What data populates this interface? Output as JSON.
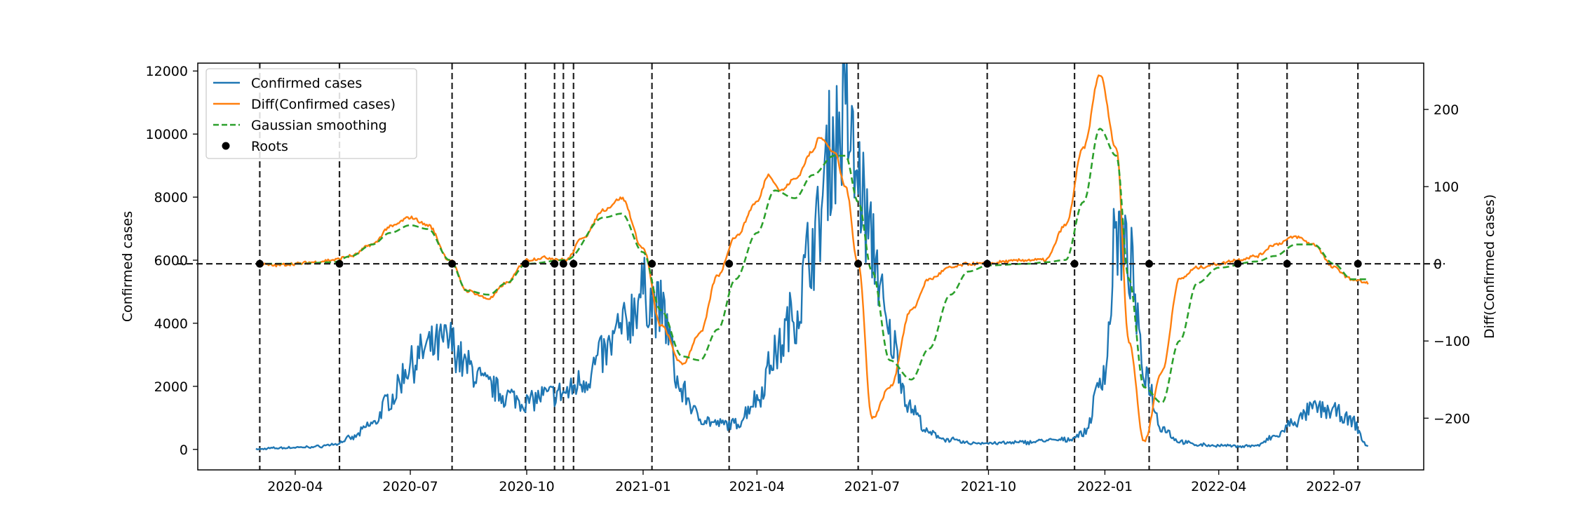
{
  "chart_data": {
    "type": "line",
    "title": "",
    "xlabel": "",
    "ylabel": "Confirmed cases",
    "y2label": "Diff(Confirmed cases)",
    "xlim": [
      "2020-01-15",
      "2022-09-10"
    ],
    "ylim": [
      -650,
      12250
    ],
    "y2lim": [
      -267,
      260
    ],
    "x_ticks": [
      "2020-04-01",
      "2020-07-01",
      "2020-10-01",
      "2021-01-01",
      "2021-04-01",
      "2021-07-01",
      "2021-10-01",
      "2022-01-01",
      "2022-04-01",
      "2022-07-01"
    ],
    "x_tick_labels": [
      "2020-04",
      "2020-07",
      "2020-10",
      "2021-01",
      "2021-04",
      "2021-07",
      "2021-10",
      "2022-01",
      "2022-04",
      "2022-07"
    ],
    "y_ticks": [
      0,
      2000,
      4000,
      6000,
      8000,
      10000,
      12000
    ],
    "y_tick_labels": [
      "0",
      "2000",
      "4000",
      "6000",
      "8000",
      "10000",
      "12000"
    ],
    "y2_ticks": [
      -200,
      -100,
      0,
      100,
      200
    ],
    "y2_tick_labels": [
      "−200",
      "−100",
      "0",
      "100",
      "200"
    ],
    "grid": false,
    "legend_position": "upper-left",
    "colors": {
      "confirmed": "#1f77b4",
      "diff": "#ff7f0e",
      "smooth": "#2ca02c",
      "roots": "#000000",
      "reference": "#222222"
    },
    "series": [
      {
        "name": "Confirmed cases",
        "axis": "left",
        "style": "solid",
        "x": [
          "2020-03-01",
          "2020-03-15",
          "2020-04-01",
          "2020-04-15",
          "2020-05-01",
          "2020-05-15",
          "2020-06-01",
          "2020-06-15",
          "2020-07-01",
          "2020-07-15",
          "2020-08-01",
          "2020-08-15",
          "2020-09-01",
          "2020-09-15",
          "2020-10-01",
          "2020-10-15",
          "2020-11-01",
          "2020-11-15",
          "2020-12-01",
          "2020-12-15",
          "2021-01-01",
          "2021-01-15",
          "2021-02-01",
          "2021-02-15",
          "2021-03-01",
          "2021-03-15",
          "2021-04-01",
          "2021-04-15",
          "2021-05-01",
          "2021-05-15",
          "2021-06-01",
          "2021-06-10",
          "2021-06-20",
          "2021-07-01",
          "2021-07-15",
          "2021-08-01",
          "2021-08-15",
          "2021-09-01",
          "2021-09-15",
          "2021-10-01",
          "2021-10-15",
          "2021-11-01",
          "2021-11-15",
          "2021-12-01",
          "2021-12-15",
          "2022-01-01",
          "2022-01-10",
          "2022-01-20",
          "2022-02-01",
          "2022-02-15",
          "2022-03-01",
          "2022-03-15",
          "2022-04-01",
          "2022-04-15",
          "2022-05-01",
          "2022-05-15",
          "2022-06-01",
          "2022-06-15",
          "2022-07-01",
          "2022-07-15",
          "2022-07-28"
        ],
        "values": [
          0,
          40,
          60,
          80,
          150,
          350,
          800,
          1600,
          2700,
          3200,
          3400,
          2600,
          2000,
          1700,
          1500,
          1700,
          1800,
          2200,
          3000,
          3800,
          5000,
          4400,
          1800,
          1000,
          800,
          800,
          1600,
          3000,
          4300,
          6500,
          9800,
          10500,
          8500,
          6500,
          3500,
          1300,
          500,
          300,
          200,
          200,
          200,
          230,
          280,
          300,
          500,
          2500,
          6800,
          6000,
          2500,
          700,
          250,
          150,
          120,
          100,
          120,
          400,
          900,
          1300,
          1200,
          900,
          100
        ]
      },
      {
        "name": "Diff(Confirmed cases)",
        "axis": "right",
        "style": "solid",
        "x": [
          "2020-03-01",
          "2020-03-15",
          "2020-04-01",
          "2020-04-15",
          "2020-05-01",
          "2020-05-15",
          "2020-06-01",
          "2020-06-15",
          "2020-07-01",
          "2020-07-15",
          "2020-08-01",
          "2020-08-15",
          "2020-09-01",
          "2020-09-15",
          "2020-10-01",
          "2020-10-15",
          "2020-11-01",
          "2020-11-15",
          "2020-12-01",
          "2020-12-15",
          "2021-01-01",
          "2021-01-15",
          "2021-02-01",
          "2021-02-15",
          "2021-03-01",
          "2021-03-15",
          "2021-04-01",
          "2021-04-10",
          "2021-04-20",
          "2021-05-01",
          "2021-05-15",
          "2021-05-20",
          "2021-06-01",
          "2021-06-10",
          "2021-06-20",
          "2021-07-01",
          "2021-07-15",
          "2021-08-01",
          "2021-08-15",
          "2021-09-01",
          "2021-09-15",
          "2021-10-01",
          "2021-10-15",
          "2021-11-01",
          "2021-11-15",
          "2021-12-01",
          "2021-12-15",
          "2021-12-28",
          "2022-01-10",
          "2022-01-20",
          "2022-02-01",
          "2022-02-15",
          "2022-03-01",
          "2022-03-15",
          "2022-04-01",
          "2022-04-15",
          "2022-05-01",
          "2022-05-15",
          "2022-06-01",
          "2022-06-15",
          "2022-07-01",
          "2022-07-15",
          "2022-07-28"
        ],
        "values": [
          0,
          -2,
          0,
          2,
          5,
          10,
          25,
          48,
          60,
          50,
          5,
          -35,
          -45,
          -25,
          5,
          8,
          5,
          35,
          70,
          85,
          20,
          -80,
          -130,
          -90,
          -15,
          35,
          80,
          115,
          95,
          110,
          145,
          165,
          145,
          100,
          0,
          -200,
          -160,
          -60,
          -20,
          -5,
          0,
          0,
          3,
          5,
          5,
          50,
          150,
          245,
          150,
          -100,
          -230,
          -140,
          -20,
          -5,
          0,
          5,
          10,
          25,
          35,
          25,
          -5,
          -20,
          -25
        ]
      },
      {
        "name": "Gaussian smoothing",
        "axis": "right",
        "style": "dashed",
        "x": [
          "2020-03-01",
          "2020-04-01",
          "2020-05-01",
          "2020-05-15",
          "2020-06-01",
          "2020-06-15",
          "2020-07-01",
          "2020-07-15",
          "2020-08-01",
          "2020-08-15",
          "2020-09-01",
          "2020-09-15",
          "2020-10-01",
          "2020-11-01",
          "2020-12-01",
          "2020-12-15",
          "2021-01-01",
          "2021-01-15",
          "2021-02-01",
          "2021-02-15",
          "2021-03-01",
          "2021-03-15",
          "2021-04-01",
          "2021-04-15",
          "2021-05-01",
          "2021-05-15",
          "2021-06-01",
          "2021-06-10",
          "2021-06-20",
          "2021-07-01",
          "2021-07-15",
          "2021-08-01",
          "2021-08-15",
          "2021-09-01",
          "2021-09-15",
          "2021-10-01",
          "2021-11-01",
          "2021-11-15",
          "2021-12-01",
          "2021-12-15",
          "2021-12-28",
          "2022-01-10",
          "2022-01-20",
          "2022-02-01",
          "2022-02-15",
          "2022-03-01",
          "2022-03-15",
          "2022-04-01",
          "2022-05-01",
          "2022-05-15",
          "2022-06-01",
          "2022-06-15",
          "2022-07-01",
          "2022-07-15",
          "2022-07-28"
        ],
        "values": [
          0,
          0,
          2,
          10,
          25,
          40,
          50,
          45,
          5,
          -35,
          -40,
          -25,
          0,
          5,
          60,
          65,
          15,
          -60,
          -120,
          -125,
          -85,
          -20,
          40,
          95,
          85,
          115,
          140,
          140,
          80,
          -10,
          -125,
          -150,
          -110,
          -40,
          -10,
          -2,
          0,
          2,
          5,
          80,
          175,
          140,
          -20,
          -160,
          -180,
          -100,
          -25,
          -5,
          3,
          10,
          25,
          25,
          0,
          -20,
          -20
        ]
      },
      {
        "name": "Roots",
        "axis": "right",
        "style": "markers",
        "x": [
          "2020-03-04",
          "2020-05-06",
          "2020-08-03",
          "2020-09-30",
          "2020-10-23",
          "2020-10-30",
          "2020-11-07",
          "2021-01-08",
          "2021-03-10",
          "2021-06-20",
          "2021-09-30",
          "2021-12-08",
          "2022-02-05",
          "2022-04-16",
          "2022-05-25",
          "2022-07-20"
        ],
        "values": [
          0,
          0,
          0,
          0,
          0,
          0,
          0,
          0,
          0,
          0,
          0,
          0,
          0,
          0,
          0,
          0
        ]
      }
    ],
    "reference_lines": {
      "horizontal_y2": 0,
      "vertical_x": [
        "2020-03-04",
        "2020-05-06",
        "2020-08-03",
        "2020-09-30",
        "2020-10-23",
        "2020-10-30",
        "2020-11-07",
        "2021-01-08",
        "2021-03-10",
        "2021-06-20",
        "2021-09-30",
        "2021-12-08",
        "2022-02-05",
        "2022-04-16",
        "2022-05-25",
        "2022-07-20"
      ]
    },
    "legend": [
      {
        "label": "Confirmed cases",
        "key": "confirmed",
        "marker": "line"
      },
      {
        "label": "Diff(Confirmed cases)",
        "key": "diff",
        "marker": "line"
      },
      {
        "label": "Gaussian smoothing",
        "key": "smooth",
        "marker": "dashed"
      },
      {
        "label": "Roots",
        "key": "roots",
        "marker": "dot"
      }
    ]
  }
}
